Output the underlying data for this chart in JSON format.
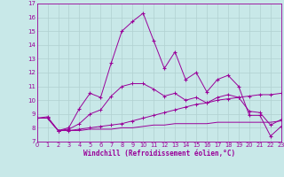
{
  "xlabel": "Windchill (Refroidissement éolien,°C)",
  "background_color": "#c8e8e8",
  "grid_color": "#b0d0d0",
  "line_color": "#990099",
  "xlim": [
    0,
    23
  ],
  "ylim": [
    7,
    17
  ],
  "xticks": [
    0,
    1,
    2,
    3,
    4,
    5,
    6,
    7,
    8,
    9,
    10,
    11,
    12,
    13,
    14,
    15,
    16,
    17,
    18,
    19,
    20,
    21,
    22,
    23
  ],
  "yticks": [
    7,
    8,
    9,
    10,
    11,
    12,
    13,
    14,
    15,
    16,
    17
  ],
  "series1_x": [
    0,
    1,
    2,
    3,
    4,
    5,
    6,
    7,
    8,
    9,
    10,
    11,
    12,
    13,
    14,
    15,
    16,
    17,
    18,
    19,
    20,
    21,
    22,
    23
  ],
  "series1_y": [
    8.7,
    8.8,
    7.8,
    8.0,
    9.4,
    10.5,
    10.2,
    12.7,
    15.0,
    15.7,
    16.3,
    14.3,
    12.3,
    13.5,
    11.5,
    12.0,
    10.6,
    11.5,
    11.8,
    11.0,
    8.9,
    8.9,
    7.4,
    8.1
  ],
  "series2_x": [
    0,
    1,
    2,
    3,
    4,
    5,
    6,
    7,
    8,
    9,
    10,
    11,
    12,
    13,
    14,
    15,
    16,
    17,
    18,
    19,
    20,
    21,
    22,
    23
  ],
  "series2_y": [
    8.7,
    8.7,
    7.8,
    7.8,
    7.9,
    8.0,
    8.1,
    8.2,
    8.3,
    8.5,
    8.7,
    8.9,
    9.1,
    9.3,
    9.5,
    9.7,
    9.8,
    10.0,
    10.1,
    10.2,
    10.3,
    10.4,
    10.4,
    10.5
  ],
  "series3_x": [
    0,
    1,
    2,
    3,
    4,
    5,
    6,
    7,
    8,
    9,
    10,
    11,
    12,
    13,
    14,
    15,
    16,
    17,
    18,
    19,
    20,
    21,
    22,
    23
  ],
  "series3_y": [
    8.7,
    8.7,
    7.8,
    7.8,
    7.8,
    7.9,
    7.9,
    7.9,
    8.0,
    8.0,
    8.1,
    8.2,
    8.2,
    8.3,
    8.3,
    8.3,
    8.3,
    8.4,
    8.4,
    8.4,
    8.4,
    8.4,
    8.4,
    8.5
  ],
  "series4_x": [
    0,
    1,
    2,
    3,
    4,
    5,
    6,
    7,
    8,
    9,
    10,
    11,
    12,
    13,
    14,
    15,
    16,
    17,
    18,
    19,
    20,
    21,
    22,
    23
  ],
  "series4_y": [
    8.7,
    8.7,
    7.8,
    7.9,
    8.3,
    9.0,
    9.3,
    10.3,
    11.0,
    11.2,
    11.2,
    10.8,
    10.3,
    10.5,
    10.0,
    10.2,
    9.8,
    10.2,
    10.4,
    10.2,
    9.2,
    9.1,
    8.2,
    8.6
  ]
}
